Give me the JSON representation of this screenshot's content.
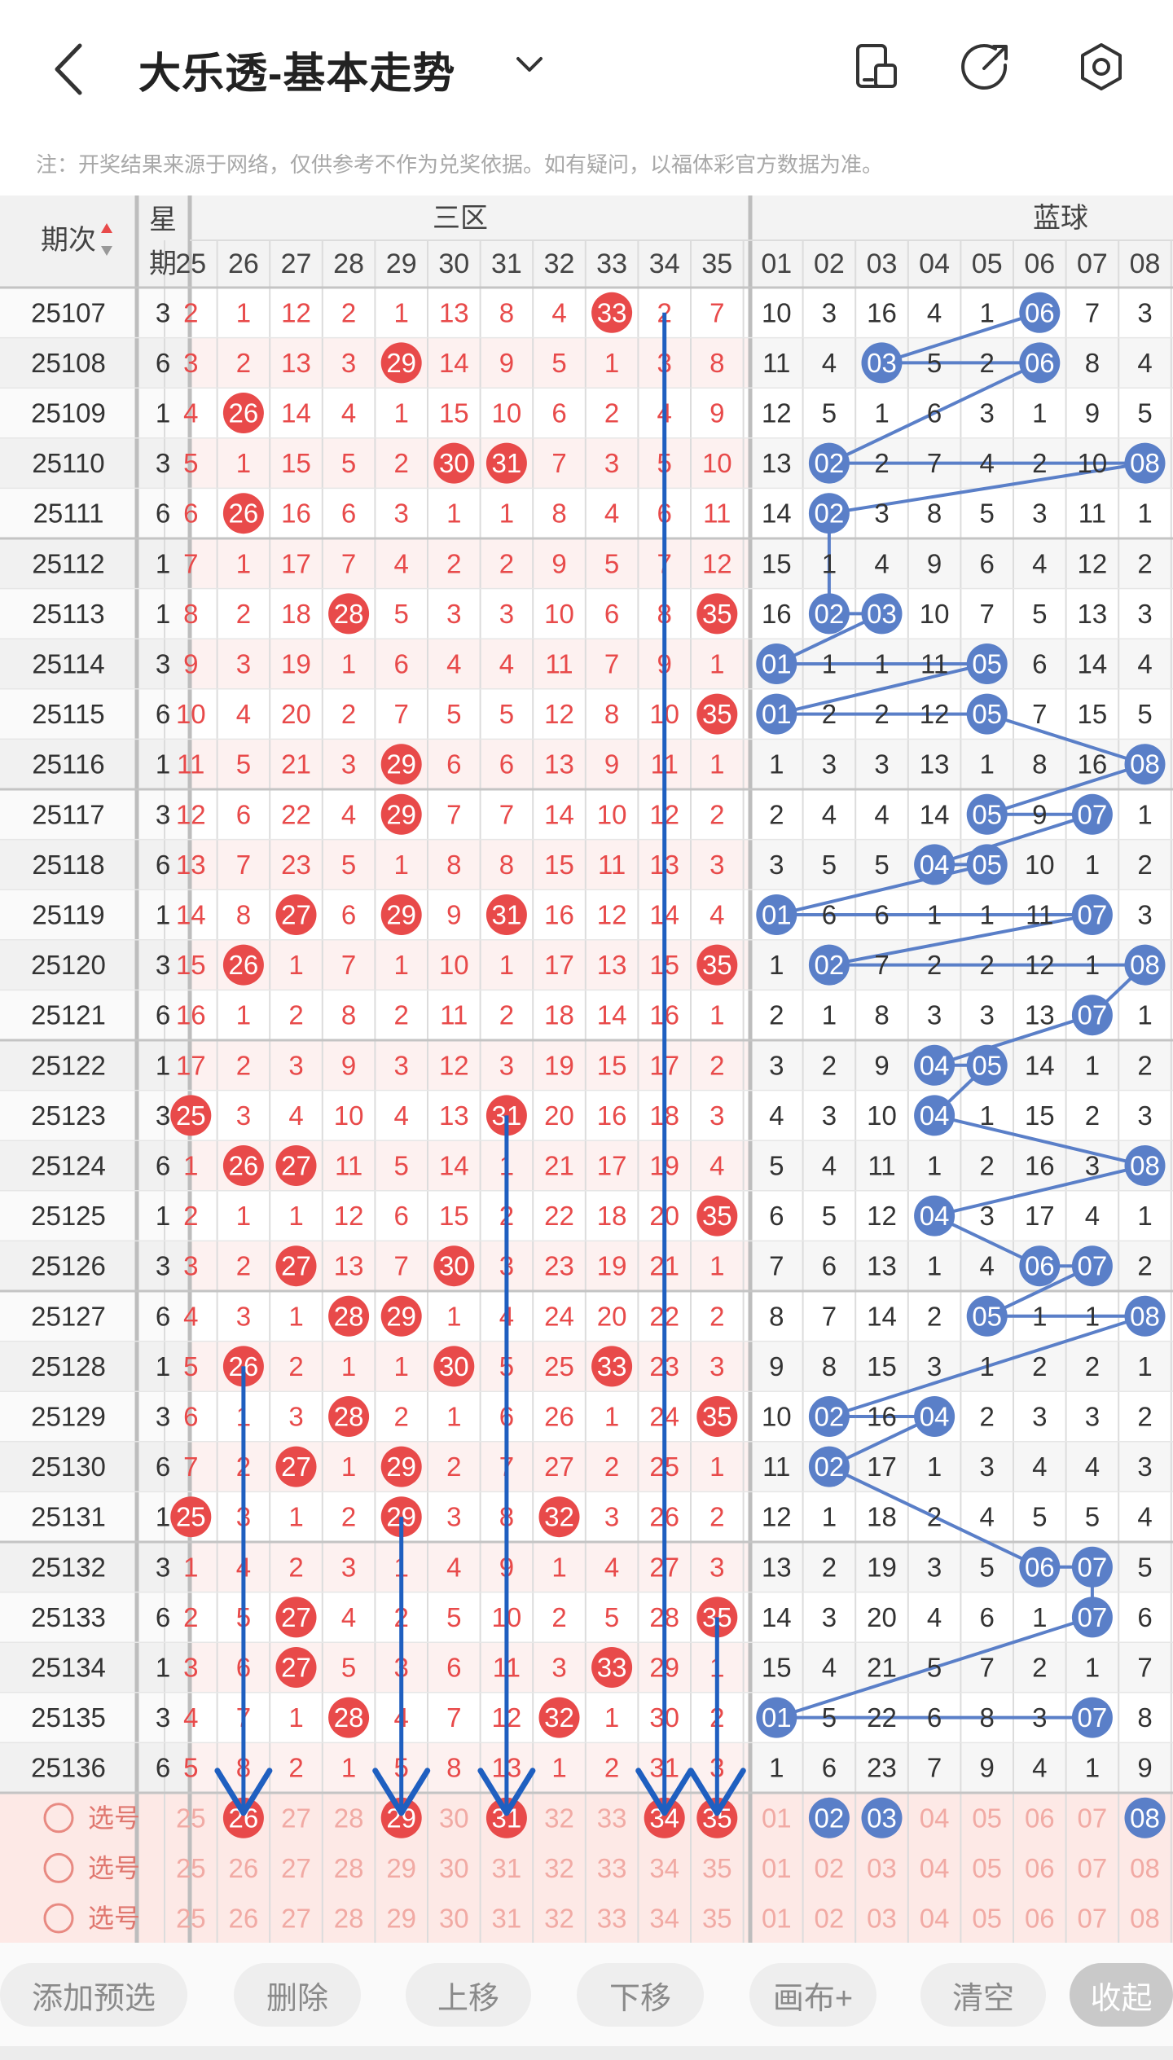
{
  "header": {
    "title": "大乐透-基本走势"
  },
  "notice": "注：开奖结果来源于网络，仅供参考不作为兑奖依据。如有疑问，以福体彩官方数据为准。",
  "table": {
    "col_period": "期次",
    "col_week": "星期",
    "group_front": "三区",
    "group_back": "蓝球",
    "red_cols": [
      "25",
      "26",
      "27",
      "28",
      "29",
      "30",
      "31",
      "32",
      "33",
      "34",
      "35"
    ],
    "blue_cols": [
      "01",
      "02",
      "03",
      "04",
      "05",
      "06",
      "07",
      "08"
    ],
    "rows": [
      {
        "p": "25107",
        "w": "3",
        "r": [
          "2",
          "1",
          "12",
          "2",
          "1",
          "13",
          "8",
          "4",
          "33",
          "2",
          "7"
        ],
        "b": [
          "10",
          "3",
          "16",
          "4",
          "1",
          "06",
          "7",
          "3"
        ]
      },
      {
        "p": "25108",
        "w": "6",
        "r": [
          "3",
          "2",
          "13",
          "3",
          "29",
          "14",
          "9",
          "5",
          "1",
          "3",
          "8"
        ],
        "b": [
          "11",
          "4",
          "03",
          "5",
          "2",
          "06",
          "8",
          "4"
        ]
      },
      {
        "p": "25109",
        "w": "1",
        "r": [
          "4",
          "26",
          "14",
          "4",
          "1",
          "15",
          "10",
          "6",
          "2",
          "4",
          "9"
        ],
        "b": [
          "12",
          "5",
          "1",
          "6",
          "3",
          "1",
          "9",
          "5"
        ]
      },
      {
        "p": "25110",
        "w": "3",
        "r": [
          "5",
          "1",
          "15",
          "5",
          "2",
          "30",
          "31",
          "7",
          "3",
          "5",
          "10"
        ],
        "b": [
          "13",
          "02",
          "2",
          "7",
          "4",
          "2",
          "10",
          "08"
        ]
      },
      {
        "p": "25111",
        "w": "6",
        "r": [
          "6",
          "26",
          "16",
          "6",
          "3",
          "1",
          "1",
          "8",
          "4",
          "6",
          "11"
        ],
        "b": [
          "14",
          "02",
          "3",
          "8",
          "5",
          "3",
          "11",
          "1"
        ]
      },
      {
        "p": "25112",
        "w": "1",
        "r": [
          "7",
          "1",
          "17",
          "7",
          "4",
          "2",
          "2",
          "9",
          "5",
          "7",
          "12"
        ],
        "b": [
          "15",
          "1",
          "4",
          "9",
          "6",
          "4",
          "12",
          "2"
        ]
      },
      {
        "p": "25113",
        "w": "1",
        "r": [
          "8",
          "2",
          "18",
          "28",
          "5",
          "3",
          "3",
          "10",
          "6",
          "8",
          "35"
        ],
        "b": [
          "16",
          "02",
          "03",
          "10",
          "7",
          "5",
          "13",
          "3"
        ]
      },
      {
        "p": "25114",
        "w": "3",
        "r": [
          "9",
          "3",
          "19",
          "1",
          "6",
          "4",
          "4",
          "11",
          "7",
          "9",
          "1"
        ],
        "b": [
          "01",
          "1",
          "1",
          "11",
          "05",
          "6",
          "14",
          "4"
        ]
      },
      {
        "p": "25115",
        "w": "6",
        "r": [
          "10",
          "4",
          "20",
          "2",
          "7",
          "5",
          "5",
          "12",
          "8",
          "10",
          "35"
        ],
        "b": [
          "01",
          "2",
          "2",
          "12",
          "05",
          "7",
          "15",
          "5"
        ]
      },
      {
        "p": "25116",
        "w": "1",
        "r": [
          "11",
          "5",
          "21",
          "3",
          "29",
          "6",
          "6",
          "13",
          "9",
          "11",
          "1"
        ],
        "b": [
          "1",
          "3",
          "3",
          "13",
          "1",
          "8",
          "16",
          "08"
        ]
      },
      {
        "p": "25117",
        "w": "3",
        "r": [
          "12",
          "6",
          "22",
          "4",
          "29",
          "7",
          "7",
          "14",
          "10",
          "12",
          "2"
        ],
        "b": [
          "2",
          "4",
          "4",
          "14",
          "05",
          "9",
          "07",
          "1"
        ]
      },
      {
        "p": "25118",
        "w": "6",
        "r": [
          "13",
          "7",
          "23",
          "5",
          "1",
          "8",
          "8",
          "15",
          "11",
          "13",
          "3"
        ],
        "b": [
          "3",
          "5",
          "5",
          "04",
          "05",
          "10",
          "1",
          "2"
        ]
      },
      {
        "p": "25119",
        "w": "1",
        "r": [
          "14",
          "8",
          "27",
          "6",
          "29",
          "9",
          "31",
          "16",
          "12",
          "14",
          "4"
        ],
        "b": [
          "01",
          "6",
          "6",
          "1",
          "1",
          "11",
          "07",
          "3"
        ]
      },
      {
        "p": "25120",
        "w": "3",
        "r": [
          "15",
          "26",
          "1",
          "7",
          "1",
          "10",
          "1",
          "17",
          "13",
          "15",
          "35"
        ],
        "b": [
          "1",
          "02",
          "7",
          "2",
          "2",
          "12",
          "1",
          "08"
        ]
      },
      {
        "p": "25121",
        "w": "6",
        "r": [
          "16",
          "1",
          "2",
          "8",
          "2",
          "11",
          "2",
          "18",
          "14",
          "16",
          "1"
        ],
        "b": [
          "2",
          "1",
          "8",
          "3",
          "3",
          "13",
          "07",
          "1"
        ]
      },
      {
        "p": "25122",
        "w": "1",
        "r": [
          "17",
          "2",
          "3",
          "9",
          "3",
          "12",
          "3",
          "19",
          "15",
          "17",
          "2"
        ],
        "b": [
          "3",
          "2",
          "9",
          "04",
          "05",
          "14",
          "1",
          "2"
        ]
      },
      {
        "p": "25123",
        "w": "3",
        "r": [
          "25",
          "3",
          "4",
          "10",
          "4",
          "13",
          "31",
          "20",
          "16",
          "18",
          "3"
        ],
        "b": [
          "4",
          "3",
          "10",
          "04",
          "1",
          "15",
          "2",
          "3"
        ]
      },
      {
        "p": "25124",
        "w": "6",
        "r": [
          "1",
          "26",
          "27",
          "11",
          "5",
          "14",
          "1",
          "21",
          "17",
          "19",
          "4"
        ],
        "b": [
          "5",
          "4",
          "11",
          "1",
          "2",
          "16",
          "3",
          "08"
        ]
      },
      {
        "p": "25125",
        "w": "1",
        "r": [
          "2",
          "1",
          "1",
          "12",
          "6",
          "15",
          "2",
          "22",
          "18",
          "20",
          "35"
        ],
        "b": [
          "6",
          "5",
          "12",
          "04",
          "3",
          "17",
          "4",
          "1"
        ]
      },
      {
        "p": "25126",
        "w": "3",
        "r": [
          "3",
          "2",
          "27",
          "13",
          "7",
          "30",
          "3",
          "23",
          "19",
          "21",
          "1"
        ],
        "b": [
          "7",
          "6",
          "13",
          "1",
          "4",
          "06",
          "07",
          "2"
        ]
      },
      {
        "p": "25127",
        "w": "6",
        "r": [
          "4",
          "3",
          "1",
          "28",
          "29",
          "1",
          "4",
          "24",
          "20",
          "22",
          "2"
        ],
        "b": [
          "8",
          "7",
          "14",
          "2",
          "05",
          "1",
          "1",
          "08"
        ]
      },
      {
        "p": "25128",
        "w": "1",
        "r": [
          "5",
          "26",
          "2",
          "1",
          "1",
          "30",
          "5",
          "25",
          "33",
          "23",
          "3"
        ],
        "b": [
          "9",
          "8",
          "15",
          "3",
          "1",
          "2",
          "2",
          "1"
        ]
      },
      {
        "p": "25129",
        "w": "3",
        "r": [
          "6",
          "1",
          "3",
          "28",
          "2",
          "1",
          "6",
          "26",
          "1",
          "24",
          "35"
        ],
        "b": [
          "10",
          "02",
          "16",
          "04",
          "2",
          "3",
          "3",
          "2"
        ]
      },
      {
        "p": "25130",
        "w": "6",
        "r": [
          "7",
          "2",
          "27",
          "1",
          "29",
          "2",
          "7",
          "27",
          "2",
          "25",
          "1"
        ],
        "b": [
          "11",
          "02",
          "17",
          "1",
          "3",
          "4",
          "4",
          "3"
        ]
      },
      {
        "p": "25131",
        "w": "1",
        "r": [
          "25",
          "3",
          "1",
          "2",
          "29",
          "3",
          "8",
          "32",
          "3",
          "26",
          "2"
        ],
        "b": [
          "12",
          "1",
          "18",
          "2",
          "4",
          "5",
          "5",
          "4"
        ]
      },
      {
        "p": "25132",
        "w": "3",
        "r": [
          "1",
          "4",
          "2",
          "3",
          "1",
          "4",
          "9",
          "1",
          "4",
          "27",
          "3"
        ],
        "b": [
          "13",
          "2",
          "19",
          "3",
          "5",
          "06",
          "07",
          "5"
        ]
      },
      {
        "p": "25133",
        "w": "6",
        "r": [
          "2",
          "5",
          "27",
          "4",
          "2",
          "5",
          "10",
          "2",
          "5",
          "28",
          "35"
        ],
        "b": [
          "14",
          "3",
          "20",
          "4",
          "6",
          "1",
          "07",
          "6"
        ]
      },
      {
        "p": "25134",
        "w": "1",
        "r": [
          "3",
          "6",
          "27",
          "5",
          "3",
          "6",
          "11",
          "3",
          "33",
          "29",
          "1"
        ],
        "b": [
          "15",
          "4",
          "21",
          "5",
          "7",
          "2",
          "1",
          "7"
        ]
      },
      {
        "p": "25135",
        "w": "3",
        "r": [
          "4",
          "7",
          "1",
          "28",
          "4",
          "7",
          "12",
          "32",
          "1",
          "30",
          "2"
        ],
        "b": [
          "01",
          "5",
          "22",
          "6",
          "8",
          "3",
          "07",
          "8"
        ]
      },
      {
        "p": "25136",
        "w": "6",
        "r": [
          "5",
          "8",
          "2",
          "1",
          "5",
          "8",
          "13",
          "1",
          "2",
          "31",
          "3"
        ],
        "b": [
          "1",
          "6",
          "23",
          "7",
          "9",
          "4",
          "1",
          "9"
        ]
      }
    ],
    "select_label": "选号",
    "selected_red": [
      "26",
      "29",
      "31",
      "34",
      "35"
    ],
    "selected_blue": [
      "02",
      "03",
      "08"
    ]
  },
  "colors": {
    "red": "#e84a4a",
    "blue": "#5a7fc8",
    "arrow": "#1f5fc0",
    "select_bg": "#fde9e6"
  },
  "toolbar": {
    "add": "添加预选",
    "delete": "删除",
    "up": "上移",
    "down": "下移",
    "canvas": "画布+",
    "clear": "清空",
    "collapse": "收起"
  }
}
